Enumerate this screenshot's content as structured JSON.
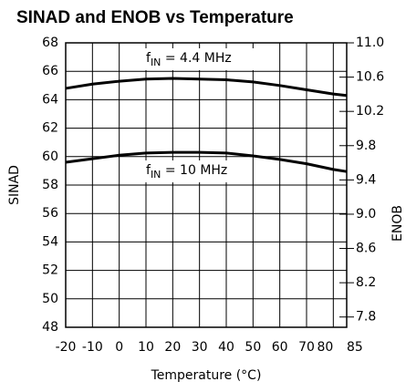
{
  "chart_data": {
    "type": "line",
    "title": "SINAD and ENOB vs Temperature",
    "x_label": "Temperature (°C)",
    "y_label": "SINAD",
    "y2_label": "ENOB",
    "x": [
      -20,
      -10,
      0,
      10,
      20,
      30,
      40,
      50,
      60,
      70,
      80,
      85
    ],
    "series": [
      {
        "color": "#000000",
        "values": [
          64.8,
          65.1,
          65.3,
          65.45,
          65.5,
          65.45,
          65.4,
          65.25,
          65.0,
          64.7,
          64.4,
          64.3
        ]
      },
      {
        "color": "#000000",
        "values": [
          59.6,
          59.85,
          60.1,
          60.25,
          60.3,
          60.3,
          60.25,
          60.05,
          59.8,
          59.5,
          59.1,
          58.95
        ]
      }
    ],
    "annotations": [
      {
        "text": "f",
        "sub": "IN",
        "rest": " = 4.4 MHz"
      },
      {
        "text": "f",
        "sub": "IN",
        "rest": " = 10 MHz"
      }
    ],
    "xlim": [
      -20,
      85
    ],
    "xticks": [
      -20,
      -10,
      0,
      10,
      20,
      30,
      40,
      50,
      60,
      70,
      80,
      85
    ],
    "ylim": [
      48,
      68
    ],
    "yticks": [
      48,
      50,
      52,
      54,
      56,
      58,
      60,
      62,
      64,
      66,
      68
    ],
    "y2lim": [
      7.68,
      11.0
    ],
    "y2ticks": [
      7.8,
      8.2,
      8.6,
      {
        "value": 9,
        "label": "9.0"
      },
      9.4,
      9.8,
      10.2,
      10.6,
      {
        "value": 11,
        "label": "11.0"
      }
    ],
    "grid": true
  }
}
